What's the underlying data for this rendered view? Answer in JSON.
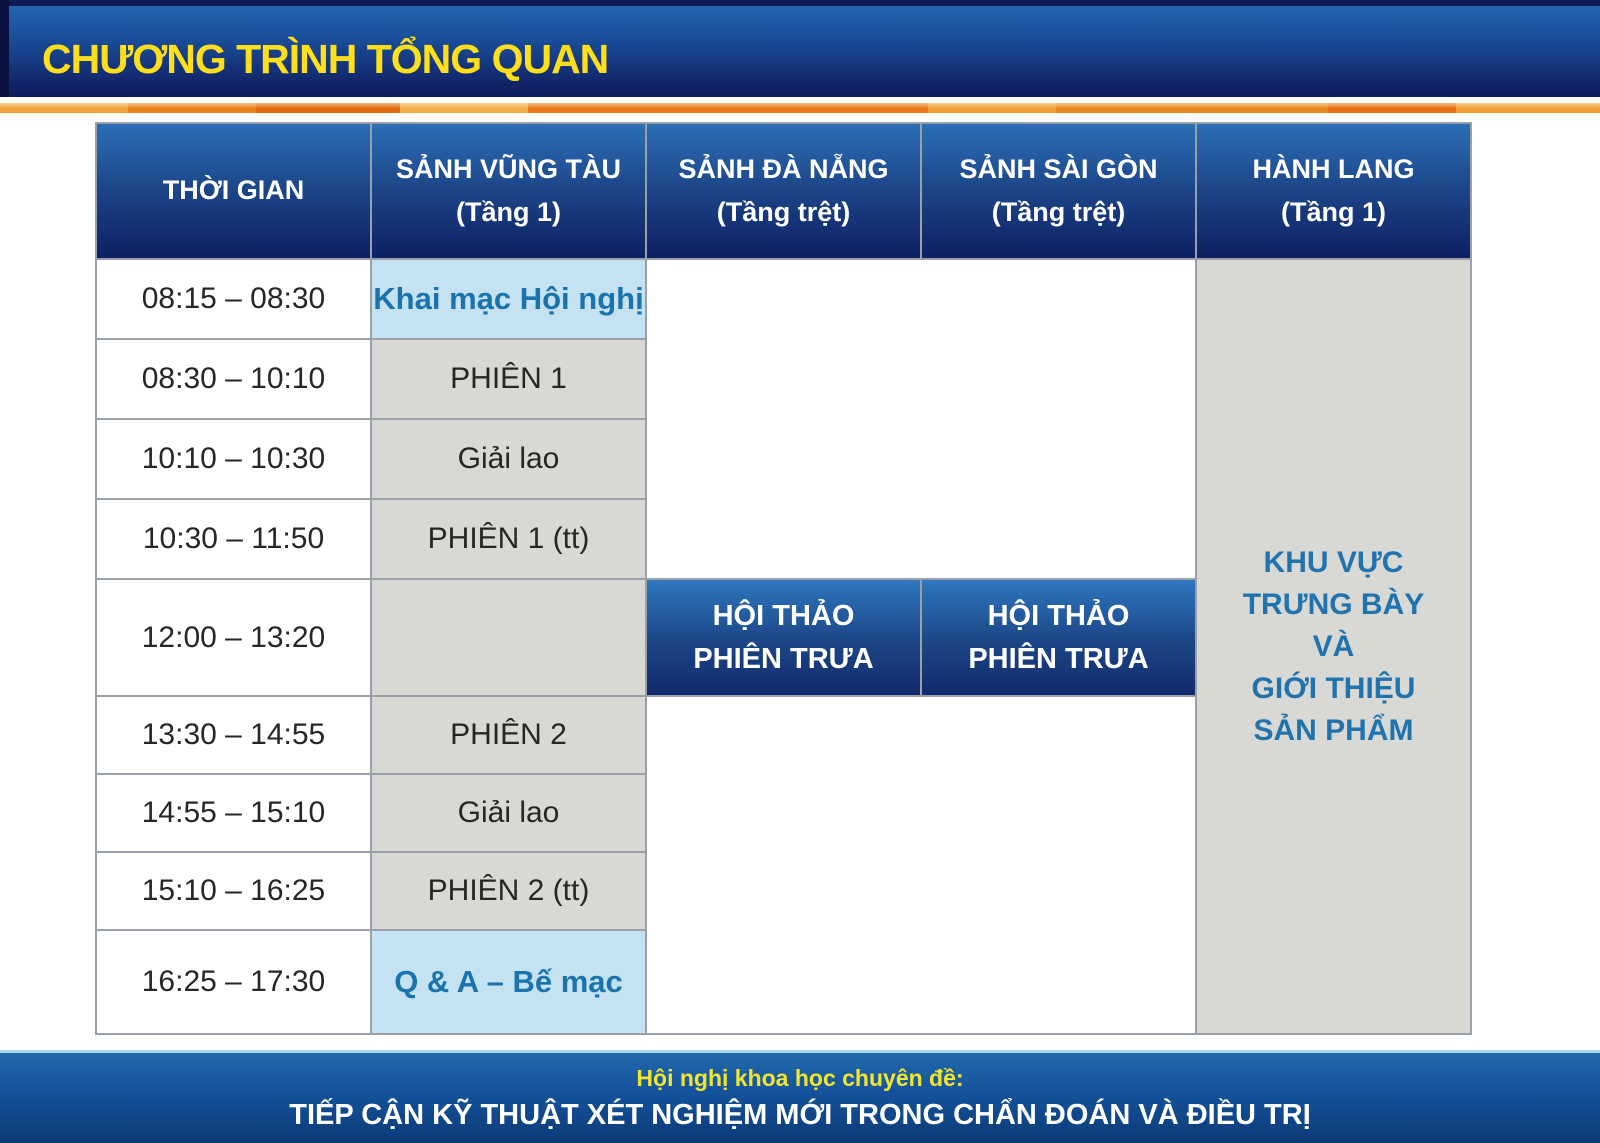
{
  "title": "CHƯƠNG TRÌNH TỔNG QUAN",
  "colors": {
    "banner_blue_top": "#2668b2",
    "banner_blue_bottom": "#0f1d5e",
    "title_yellow": "#ffdf1b",
    "accent_orange": "#e8781a",
    "header_cell_blue_top": "#2d6fb6",
    "header_cell_blue_bottom": "#0e2063",
    "grid_line_gray": "#9aa0a8",
    "highlight_cell_bg": "#c4e2f1",
    "highlight_cell_text": "#1a73ad",
    "gray_cell_bg": "#d8d8d4",
    "footer_yellow": "#f3e52e"
  },
  "table": {
    "columns": [
      {
        "title": "THỜI GIAN",
        "subtitle": ""
      },
      {
        "title": "SẢNH VŨNG TÀU",
        "subtitle": "(Tầng 1)"
      },
      {
        "title": "SẢNH ĐÀ NẴNG",
        "subtitle": "(Tầng trệt)"
      },
      {
        "title": "SẢNH SÀI GÒN",
        "subtitle": "(Tầng trệt)"
      },
      {
        "title": "HÀNH LANG",
        "subtitle": "(Tầng 1)"
      }
    ],
    "rows": [
      {
        "time": "08:15 – 08:30",
        "vung_tau": "Khai mạc Hội nghị"
      },
      {
        "time": "08:30 – 10:10",
        "vung_tau": "PHIÊN 1"
      },
      {
        "time": "10:10 – 10:30",
        "vung_tau": "Giải lao"
      },
      {
        "time": "10:30 – 11:50",
        "vung_tau": "PHIÊN 1 (tt)"
      },
      {
        "time": "12:00 – 13:20",
        "vung_tau": ""
      },
      {
        "time": "13:30 – 14:55",
        "vung_tau": "PHIÊN 2"
      },
      {
        "time": "14:55 – 15:10",
        "vung_tau": "Giải lao"
      },
      {
        "time": "15:10 – 16:25",
        "vung_tau": "PHIÊN 2 (tt)"
      },
      {
        "time": "16:25 – 17:30",
        "vung_tau": "Q & A – Bế mạc"
      }
    ],
    "lunch_session": {
      "da_nang": "HỘI THẢO\nPHIÊN TRƯA",
      "sai_gon": "HỘI THẢO\nPHIÊN TRƯA"
    },
    "hallway_note": "KHU VỰC\nTRƯNG BÀY\nVÀ\nGIỚI THIỆU\nSẢN PHẨM"
  },
  "footer": {
    "line1": "Hội nghị khoa học chuyên đề:",
    "line2": "TIẾP CẬN KỸ THUẬT XÉT NGHIỆM MỚI TRONG CHẨN ĐOÁN VÀ ĐIỀU TRỊ"
  }
}
